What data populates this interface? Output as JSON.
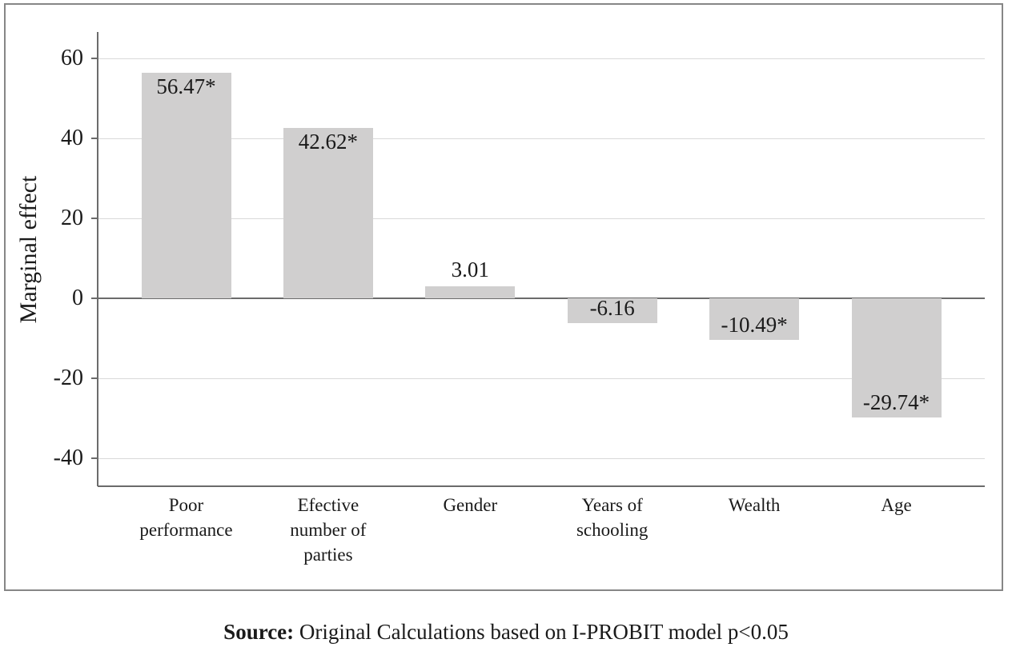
{
  "chart_data": {
    "type": "bar",
    "title": "",
    "xlabel": "",
    "ylabel": "Marginal effect",
    "categories": [
      "Poor\nperformance",
      "Efective\nnumber of\nparties",
      "Gender",
      "Years of\nschooling",
      "Wealth",
      "Age"
    ],
    "values": [
      56.47,
      42.62,
      3.01,
      -6.16,
      -10.49,
      -29.74
    ],
    "bar_labels": [
      "56.47*",
      "42.62*",
      "3.01",
      "-6.16",
      "-10.49*",
      "-29.74*"
    ],
    "yticks": [
      60,
      40,
      20,
      0,
      -20,
      -40
    ],
    "ylim": [
      -47,
      67
    ],
    "grid": true,
    "legend": false,
    "bar_color": "#d0cfcf",
    "gridline_color": "#d9d9d9",
    "axis_color": "#6b6b6b",
    "frame_color": "#868686"
  },
  "caption": {
    "prefix": "Source:",
    "text": "Original Calculations based on I-PROBIT model p<0.05"
  }
}
